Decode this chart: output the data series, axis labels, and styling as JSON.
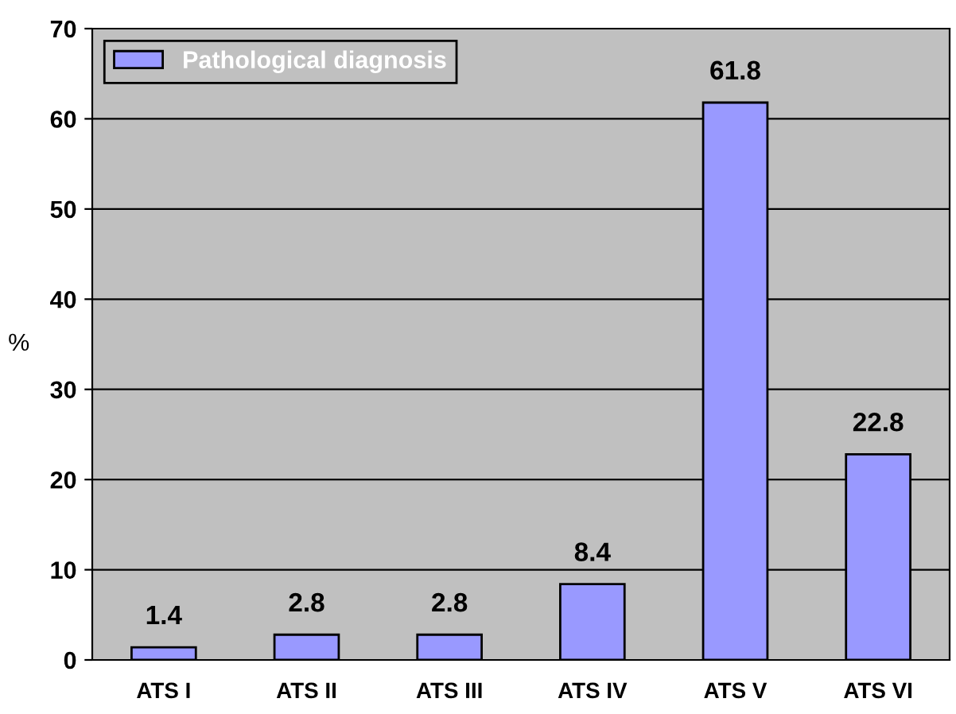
{
  "chart_data": {
    "type": "bar",
    "ylabel": "%",
    "categories": [
      "ATS I",
      "ATS II",
      "ATS III",
      "ATS IV",
      "ATS V",
      "ATS VI"
    ],
    "series": [
      {
        "name": "Pathological diagnosis",
        "color": "#9999ff",
        "values": [
          1.4,
          2.8,
          2.8,
          8.4,
          61.8,
          22.8
        ]
      }
    ],
    "ylim": [
      0,
      70
    ],
    "yticks": [
      0,
      10,
      20,
      30,
      40,
      50,
      60,
      70
    ],
    "grid": "y",
    "legend": "top left",
    "data_labels": true
  }
}
